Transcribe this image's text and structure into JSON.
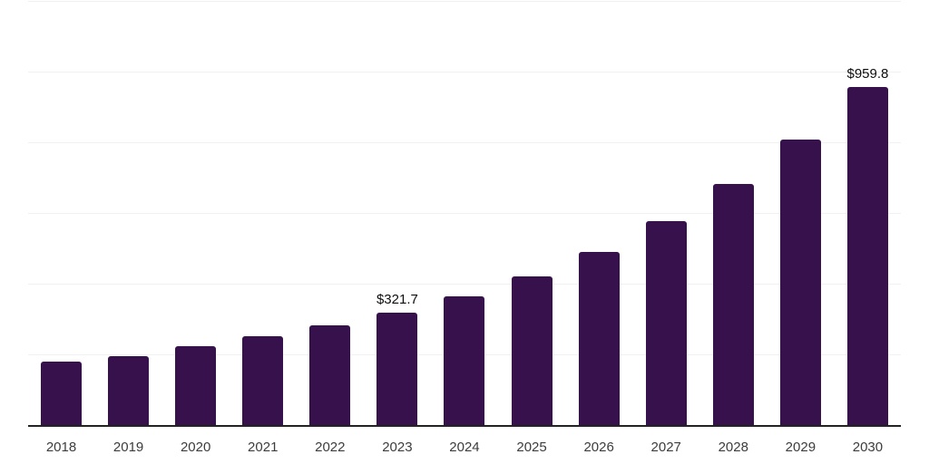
{
  "chart_data": {
    "type": "bar",
    "title": "",
    "xlabel": "",
    "ylabel": "",
    "categories": [
      "2018",
      "2019",
      "2020",
      "2021",
      "2022",
      "2023",
      "2024",
      "2025",
      "2026",
      "2027",
      "2028",
      "2029",
      "2030"
    ],
    "values": [
      181,
      198,
      226,
      254,
      284,
      321.7,
      367,
      423,
      493,
      579,
      684,
      810,
      959.8
    ],
    "data_labels": {
      "2023": "$321.7",
      "2030": "$959.8"
    },
    "ylim": [
      0,
      1200
    ],
    "gridline_step": 200,
    "grid": "horizontal",
    "y_tick_labels_shown": false,
    "legend": "none"
  },
  "colors": {
    "background": "#FFFFFF",
    "bar": "#36114B",
    "gridline": "#F1F1F1",
    "axis_line": "#232323",
    "tick_label": "#3C3C3C",
    "data_label": "#0D0D0D"
  }
}
